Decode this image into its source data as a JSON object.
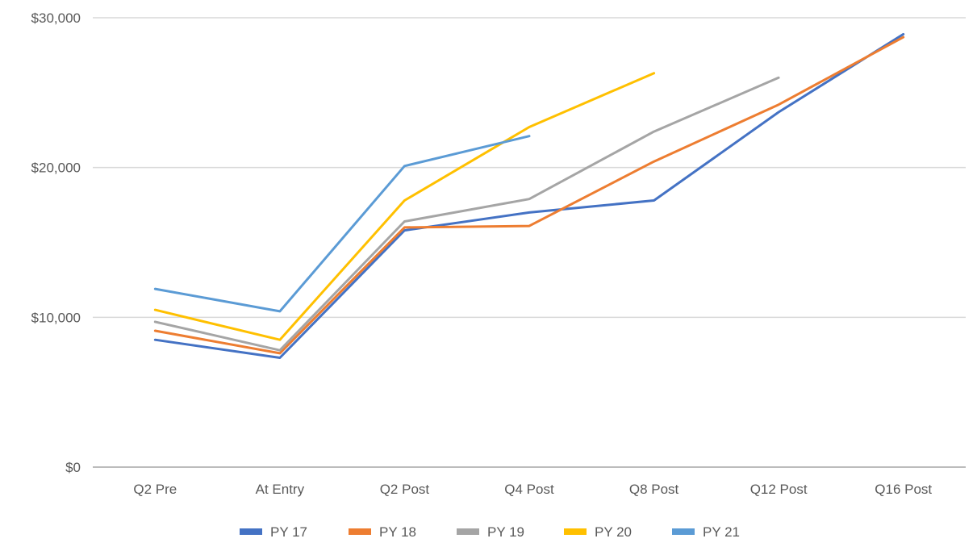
{
  "chart_data": {
    "type": "line",
    "title": "",
    "xlabel": "",
    "ylabel": "",
    "categories": [
      "Q2 Pre",
      "At Entry",
      "Q2 Post",
      "Q4 Post",
      "Q8 Post",
      "Q12 Post",
      "Q16 Post"
    ],
    "ylim": [
      0,
      30000
    ],
    "yticks": [
      0,
      10000,
      20000,
      30000
    ],
    "ytick_labels": [
      "$0",
      "$10,000",
      "$20,000",
      "$30,000"
    ],
    "grid": "horizontal",
    "legend_position": "bottom",
    "series": [
      {
        "name": "PY 17",
        "color": "#4472C4",
        "values": [
          8500,
          7300,
          15800,
          17000,
          17800,
          23700,
          28900
        ]
      },
      {
        "name": "PY 18",
        "color": "#ED7D31",
        "values": [
          9100,
          7600,
          16000,
          16100,
          20400,
          24200,
          28700
        ]
      },
      {
        "name": "PY 19",
        "color": "#A5A5A5",
        "values": [
          9700,
          7800,
          16400,
          17900,
          22400,
          26000,
          null
        ]
      },
      {
        "name": "PY 20",
        "color": "#FFC000",
        "values": [
          10500,
          8500,
          17800,
          22700,
          26300,
          null,
          null
        ]
      },
      {
        "name": "PY 21",
        "color": "#5B9BD5",
        "values": [
          11900,
          10400,
          20100,
          22100,
          null,
          null,
          null
        ]
      }
    ]
  }
}
